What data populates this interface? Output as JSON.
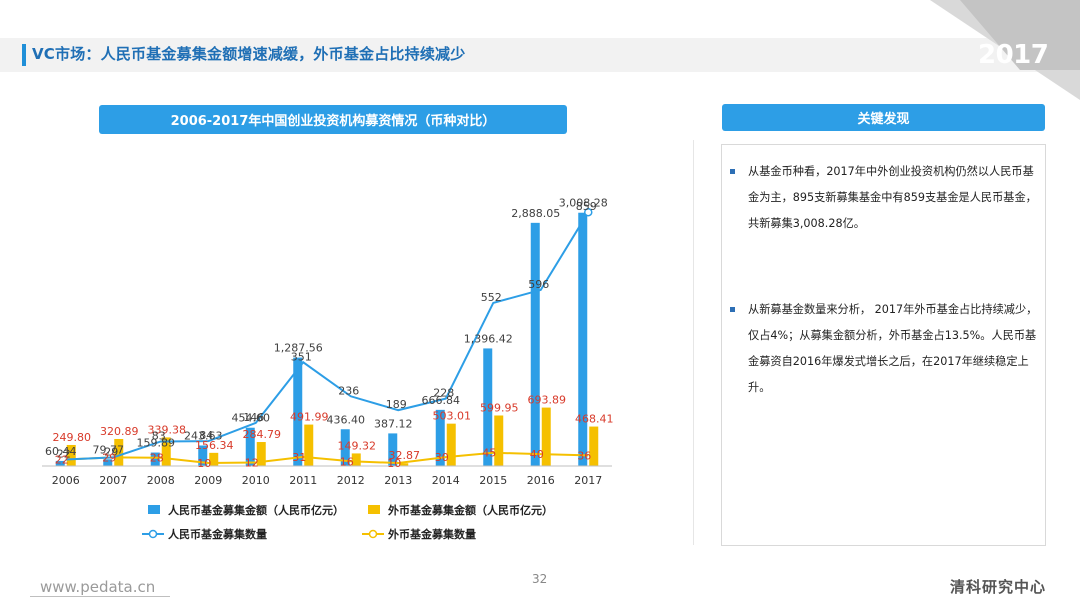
{
  "page": {
    "title": "VC市场：人民币基金募集金额增速减缓，外币基金占比持续减少",
    "year_badge": "2017",
    "page_number": "32",
    "footer_url": "www.pedata.cn",
    "brand": "清科研究中心"
  },
  "chart_header": "2006-2017年中国创业投资机构募资情况（币种对比）",
  "side": {
    "header": "关键发现",
    "findings": [
      "从基金币种看，2017年中外创业投资机构仍然以人民币基金为主，895支新募集基金中有859支基金是人民币基金，共新募集3,008.28亿。",
      "从新募基金数量来分析， 2017年外币基金占比持续减少，仅占4%；从募集金额分析，外币基金占13.5%。人民币基金募资自2016年爆发式增长之后，在2017年继续稳定上升。"
    ]
  },
  "colors": {
    "rmb_bar": "#2d9ee6",
    "fx_bar": "#f5c000",
    "rmb_line": "#2d9ee6",
    "fx_line": "#f5c000",
    "fx_label": "#d83a2a",
    "accent": "#1f6fb5"
  },
  "chart_data": {
    "type": "bar",
    "categories": [
      "2006",
      "2007",
      "2008",
      "2009",
      "2010",
      "2011",
      "2012",
      "2013",
      "2014",
      "2015",
      "2016",
      "2017"
    ],
    "series": [
      {
        "name": "人民币基金募集金额（人民币亿元）",
        "kind": "bar",
        "values": [
          60.44,
          79.77,
          159.89,
          243.63,
          454.6,
          1287.56,
          436.4,
          387.12,
          666.84,
          1396.42,
          2888.05,
          3008.28
        ],
        "labels": [
          "60.44",
          "79.77",
          "159.89",
          "243.63",
          "454.60",
          "1,287.56",
          "436.40",
          "387.12",
          "666.84",
          "1,396.42",
          "2,888.05",
          "3,008.28"
        ]
      },
      {
        "name": "外币基金募集金额（人民币亿元）",
        "kind": "bar",
        "values": [
          249.8,
          320.89,
          339.38,
          156.34,
          284.79,
          491.99,
          149.32,
          32.87,
          503.01,
          599.95,
          693.89,
          468.41
        ],
        "labels": [
          "249.80",
          "320.89",
          "339.38",
          "156.34",
          "284.79",
          "491.99",
          "149.32",
          "32.87",
          "503.01",
          "599.95",
          "693.89",
          "468.41"
        ]
      },
      {
        "name": "人民币基金募集数量",
        "kind": "line",
        "values": [
          22,
          29,
          83,
          84,
          146,
          351,
          236,
          189,
          228,
          552,
          596,
          859
        ],
        "labels": [
          "22",
          "29",
          "83",
          "84",
          "146",
          "351",
          "236",
          "189",
          "228",
          "552",
          "596",
          "859"
        ]
      },
      {
        "name": "外币基金募集数量",
        "kind": "line",
        "values": [
          22,
          29,
          28,
          10,
          12,
          31,
          16,
          10,
          30,
          45,
          40,
          36
        ],
        "labels": [
          "22",
          "29",
          "28",
          "10",
          "12",
          "31",
          "16",
          "10",
          "30",
          "45",
          "40",
          "36"
        ]
      }
    ]
  }
}
